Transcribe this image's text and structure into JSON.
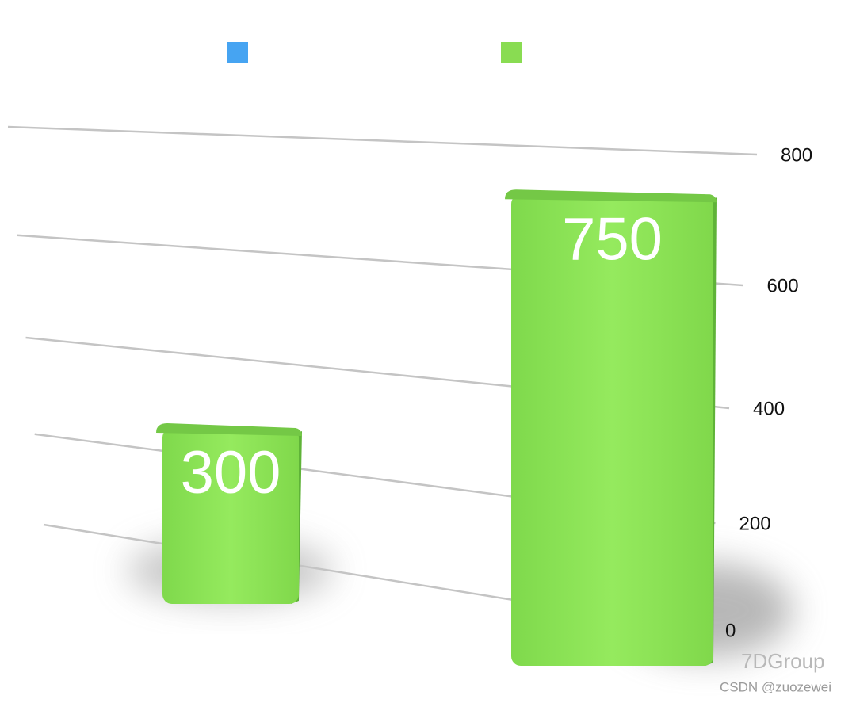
{
  "chart_data": {
    "type": "bar",
    "categories": [
      null,
      null
    ],
    "values": [
      300,
      750
    ],
    "color": "#8ee55a",
    "legend_colors": [
      "#46a4f2",
      "#89dc52"
    ],
    "ylim": [
      0,
      800
    ],
    "yticks": [
      0,
      200,
      400,
      600,
      800
    ],
    "grid": true,
    "watermark": [
      "7DGroup",
      "CSDN @zuozewei"
    ]
  }
}
